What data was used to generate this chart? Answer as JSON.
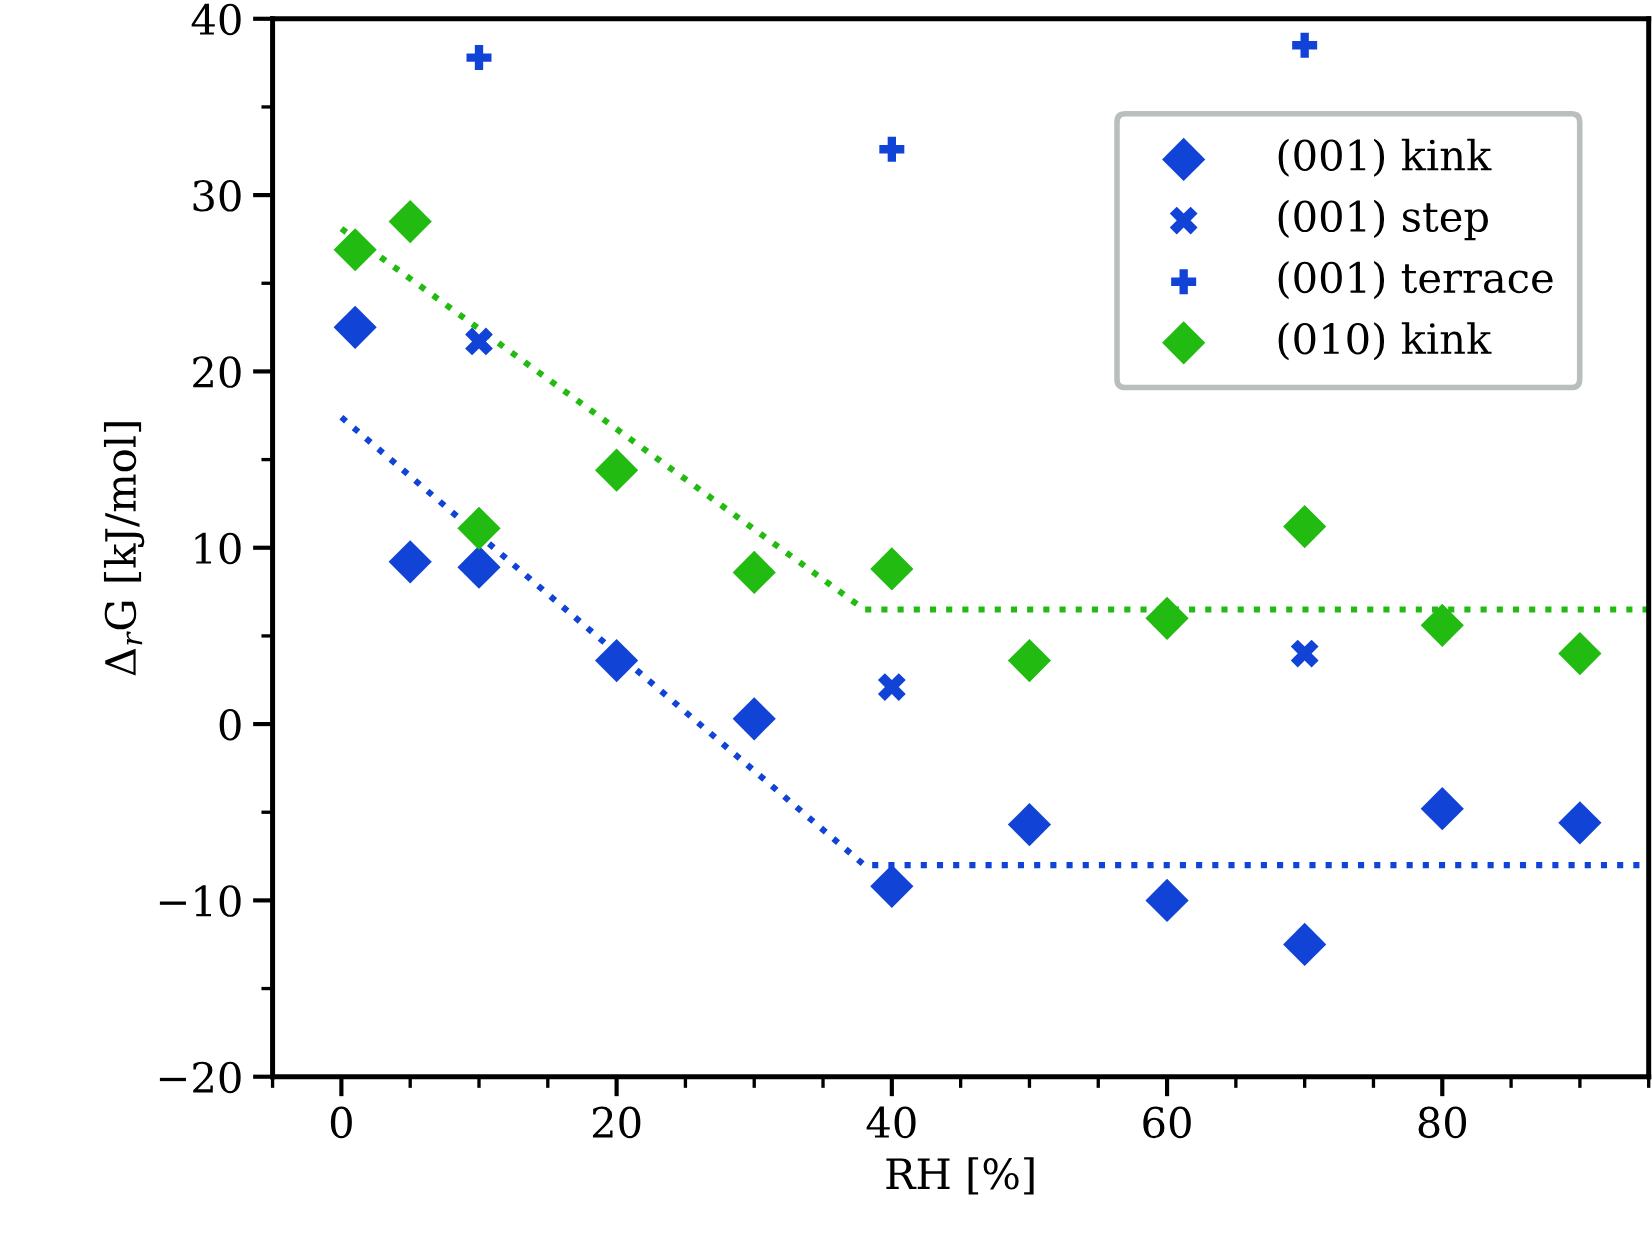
{
  "chart_data": {
    "type": "scatter",
    "xlabel": "RH [%]",
    "ylabel": "Δ$_{r}$G [kJ/mol]",
    "xlim": [
      -5,
      95
    ],
    "ylim": [
      -20,
      40
    ],
    "xticks": [
      0,
      20,
      40,
      60,
      80
    ],
    "yticks": [
      -20,
      -10,
      0,
      10,
      20,
      30,
      40
    ],
    "grid": false,
    "legend": "top right",
    "series": [
      {
        "name": "(001) kink",
        "color": "#1144d6",
        "marker": "diamond",
        "x": [
          1,
          5,
          10,
          20,
          30,
          40,
          50,
          60,
          70,
          80,
          90
        ],
        "values": [
          22.5,
          9.2,
          8.9,
          3.6,
          0.3,
          -9.2,
          -5.7,
          -10,
          -12.5,
          -4.8,
          -5.6
        ]
      },
      {
        "name": "(001) step",
        "color": "#1144d6",
        "marker": "cross",
        "x": [
          10,
          40,
          70
        ],
        "values": [
          21.7,
          2.1,
          4
        ]
      },
      {
        "name": "(001) terrace",
        "color": "#1144d6",
        "marker": "plus",
        "x": [
          10,
          40,
          70
        ],
        "values": [
          37.8,
          32.6,
          38.5
        ]
      },
      {
        "name": "(010) kink",
        "color": "#22bb11",
        "marker": "diamond",
        "x": [
          1,
          5,
          10,
          20,
          30,
          40,
          50,
          60,
          70,
          80,
          90
        ],
        "values": [
          26.9,
          28.5,
          11.1,
          14.4,
          8.6,
          8.8,
          3.6,
          6,
          11.2,
          5.6,
          4
        ]
      },
      {
        "type": "line",
        "color": "#1144d6",
        "line_style": "dotted",
        "marker": "none",
        "x": [
          0,
          38,
          95
        ],
        "values": [
          17.4,
          -8,
          -8
        ]
      },
      {
        "type": "line",
        "color": "#22bb11",
        "line_style": "dotted",
        "marker": "none",
        "x": [
          0,
          38,
          95
        ],
        "values": [
          28.1,
          6.5,
          6.5
        ]
      }
    ]
  }
}
